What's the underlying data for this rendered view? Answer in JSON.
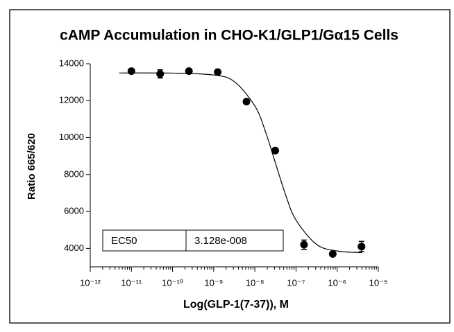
{
  "chart_data": {
    "type": "scatter",
    "title": "cAMP Accumulation in CHO-K1/GLP1/Gα15 Cells",
    "x_label": "Log(GLP-1(7-37)), M",
    "y_label": "Ratio 665/620",
    "x": [
      1e-11,
      5e-11,
      2.5e-10,
      1.25e-09,
      6.25e-09,
      3.125e-08,
      1.5625e-07,
      7.8e-07,
      3.9e-06
    ],
    "series": [
      {
        "color": "#000000",
        "values": [
          13600,
          13450,
          13600,
          13550,
          11950,
          9300,
          4200,
          3700,
          4100
        ],
        "errors": [
          80,
          220,
          60,
          80,
          100,
          100,
          250,
          80,
          280
        ]
      }
    ],
    "curve": {
      "color": "#000000",
      "x": [
        5e-12,
        1e-10,
        1e-09,
        3.16e-09,
        1e-08,
        1.78e-08,
        3.16e-08,
        5.62e-08,
        1e-07,
        3.16e-07,
        1e-06,
        3.98e-06
      ],
      "values": [
        13500,
        13495,
        13392,
        13036,
        11716,
        10370,
        8625,
        6884,
        5532,
        4215,
        3858,
        3768
      ]
    },
    "xscale": "log",
    "xlim": [
      1e-12,
      1e-05
    ],
    "xticks": [
      {
        "value": 1e-12,
        "label": "10⁻¹²"
      },
      {
        "value": 1e-11,
        "label": "10⁻¹¹"
      },
      {
        "value": 1e-10,
        "label": "10⁻¹⁰"
      },
      {
        "value": 1e-09,
        "label": "10⁻⁹"
      },
      {
        "value": 1e-08,
        "label": "10⁻⁸"
      },
      {
        "value": 1e-07,
        "label": "10⁻⁷"
      },
      {
        "value": 1e-06,
        "label": "10⁻⁶"
      },
      {
        "value": 1e-05,
        "label": "10⁻⁵"
      }
    ],
    "ylim": [
      3000,
      14000
    ],
    "yticks": [
      4000,
      6000,
      8000,
      10000,
      12000,
      14000
    ],
    "table": {
      "label": "EC50",
      "value": "3.128e-008"
    }
  }
}
